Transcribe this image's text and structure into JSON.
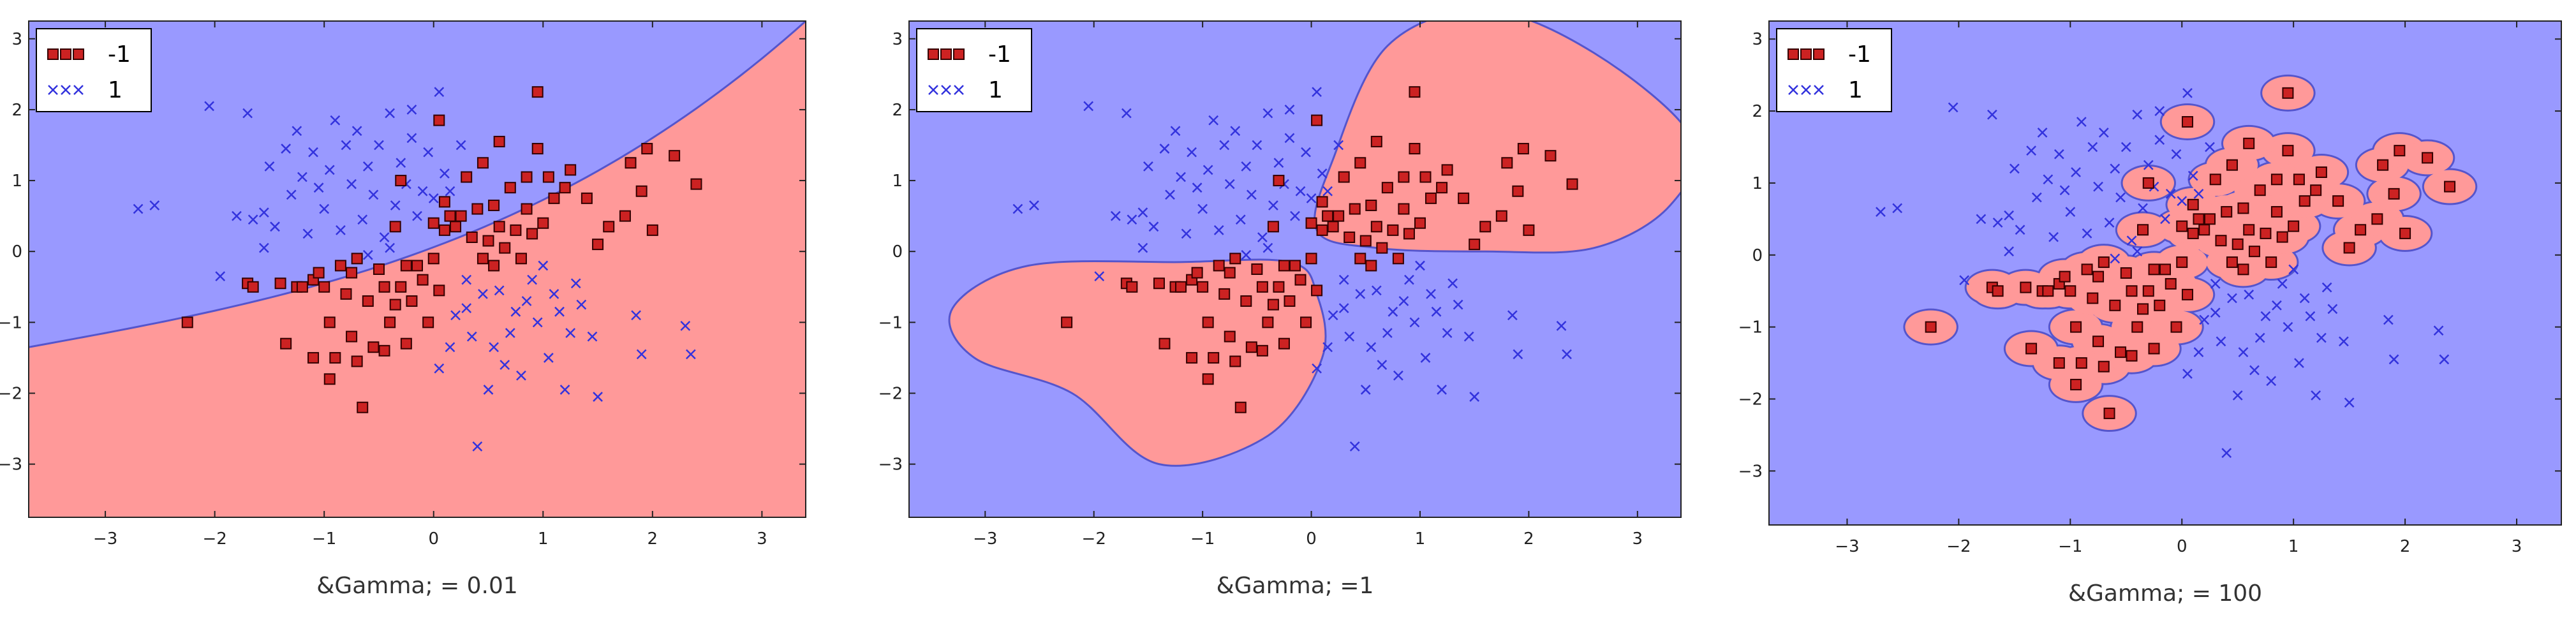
{
  "figure": {
    "panels": [
      {
        "caption": "&Gamma; = 0.01"
      },
      {
        "caption": "&Gamma; =1"
      },
      {
        "caption": "&Gamma; = 100"
      }
    ]
  },
  "chart_data": [
    {
      "type": "scatter",
      "title": "&Gamma; = 0.01",
      "xlim": [
        -3.7,
        3.4
      ],
      "ylim": [
        -3.75,
        3.25
      ],
      "xticks": [
        -3,
        -2,
        -1,
        0,
        1,
        2,
        3
      ],
      "yticks": [
        -3,
        -2,
        -1,
        0,
        1,
        2,
        3
      ],
      "legend": {
        "placement": "top-left",
        "entries": [
          "-1",
          "1"
        ]
      },
      "regions": {
        "class_-1": "#ff9999",
        "class_1": "#9999ff",
        "boundary": "#5555cc"
      },
      "decision_boundary": "smooth convex curve from (-3.7,-1.35) rising to (3.4,3.25); lower-right region is class -1",
      "series": [
        {
          "name": "-1",
          "marker": "square",
          "color": "#cc2222",
          "points": [
            [
              -2.25,
              -1.0
            ],
            [
              -1.7,
              -0.45
            ],
            [
              -1.65,
              -0.5
            ],
            [
              -1.4,
              -0.45
            ],
            [
              -1.35,
              -1.3
            ],
            [
              -1.25,
              -0.5
            ],
            [
              -1.2,
              -0.5
            ],
            [
              -1.1,
              -0.4
            ],
            [
              -1.1,
              -1.5
            ],
            [
              -1.05,
              -0.3
            ],
            [
              -1.0,
              -0.5
            ],
            [
              -0.95,
              -1.8
            ],
            [
              -0.95,
              -1.0
            ],
            [
              -0.9,
              -1.5
            ],
            [
              -0.85,
              -0.2
            ],
            [
              -0.8,
              -0.6
            ],
            [
              -0.75,
              -0.3
            ],
            [
              -0.75,
              -1.2
            ],
            [
              -0.7,
              -1.55
            ],
            [
              -0.7,
              -0.1
            ],
            [
              -0.65,
              -2.2
            ],
            [
              -0.6,
              -0.7
            ],
            [
              -0.55,
              -1.35
            ],
            [
              -0.5,
              -0.25
            ],
            [
              -0.45,
              -0.5
            ],
            [
              -0.45,
              -1.4
            ],
            [
              -0.4,
              -1.0
            ],
            [
              -0.35,
              -0.75
            ],
            [
              -0.3,
              -0.5
            ],
            [
              -0.25,
              -1.3
            ],
            [
              -0.2,
              -0.7
            ],
            [
              -0.1,
              -0.4
            ],
            [
              -0.05,
              -1.0
            ],
            [
              0.0,
              -0.1
            ],
            [
              0.05,
              -0.55
            ],
            [
              0.1,
              0.3
            ],
            [
              0.1,
              0.7
            ],
            [
              0.2,
              0.35
            ],
            [
              0.25,
              0.5
            ],
            [
              0.35,
              0.2
            ],
            [
              0.4,
              0.6
            ],
            [
              0.45,
              -0.1
            ],
            [
              0.5,
              0.15
            ],
            [
              0.55,
              -0.2
            ],
            [
              0.55,
              0.65
            ],
            [
              0.6,
              0.35
            ],
            [
              0.65,
              0.05
            ],
            [
              0.7,
              0.9
            ],
            [
              0.75,
              0.3
            ],
            [
              0.8,
              -0.1
            ],
            [
              0.85,
              0.6
            ],
            [
              0.9,
              0.25
            ],
            [
              0.95,
              1.45
            ],
            [
              1.0,
              0.4
            ],
            [
              1.05,
              1.05
            ],
            [
              1.1,
              0.75
            ],
            [
              1.2,
              0.9
            ],
            [
              1.25,
              1.15
            ],
            [
              1.4,
              0.75
            ],
            [
              1.5,
              0.1
            ],
            [
              1.6,
              0.35
            ],
            [
              1.75,
              0.5
            ],
            [
              1.8,
              1.25
            ],
            [
              1.9,
              0.85
            ],
            [
              1.95,
              1.45
            ],
            [
              2.0,
              0.3
            ],
            [
              2.2,
              1.35
            ],
            [
              2.4,
              0.95
            ],
            [
              -0.3,
              1.0
            ],
            [
              -0.35,
              0.35
            ],
            [
              0.0,
              0.4
            ],
            [
              0.3,
              1.05
            ],
            [
              0.05,
              1.85
            ],
            [
              0.95,
              2.25
            ],
            [
              -0.25,
              -0.2
            ],
            [
              -0.15,
              -0.2
            ],
            [
              0.15,
              0.5
            ],
            [
              0.45,
              1.25
            ],
            [
              0.6,
              1.55
            ],
            [
              0.85,
              1.05
            ]
          ]
        },
        {
          "name": "1",
          "marker": "x",
          "color": "#3333dd",
          "points": [
            [
              -2.7,
              0.6
            ],
            [
              -2.55,
              0.65
            ],
            [
              -2.05,
              2.05
            ],
            [
              -1.8,
              0.5
            ],
            [
              -1.7,
              1.95
            ],
            [
              -1.65,
              0.45
            ],
            [
              -1.55,
              0.55
            ],
            [
              -1.5,
              1.2
            ],
            [
              -1.45,
              0.35
            ],
            [
              -1.35,
              1.45
            ],
            [
              -1.3,
              0.8
            ],
            [
              -1.25,
              1.7
            ],
            [
              -1.2,
              1.05
            ],
            [
              -1.15,
              0.25
            ],
            [
              -1.1,
              1.4
            ],
            [
              -1.05,
              0.9
            ],
            [
              -1.0,
              0.6
            ],
            [
              -0.95,
              1.15
            ],
            [
              -0.9,
              1.85
            ],
            [
              -0.85,
              0.3
            ],
            [
              -0.8,
              1.5
            ],
            [
              -0.75,
              0.95
            ],
            [
              -0.7,
              1.7
            ],
            [
              -0.65,
              0.45
            ],
            [
              -0.6,
              1.2
            ],
            [
              -0.55,
              0.8
            ],
            [
              -0.5,
              1.5
            ],
            [
              -0.45,
              0.2
            ],
            [
              -0.4,
              1.95
            ],
            [
              -0.35,
              0.65
            ],
            [
              -0.3,
              1.25
            ],
            [
              -0.25,
              0.95
            ],
            [
              -0.2,
              1.6
            ],
            [
              -0.15,
              0.5
            ],
            [
              -0.1,
              0.85
            ],
            [
              -0.05,
              1.4
            ],
            [
              0.0,
              0.75
            ],
            [
              0.05,
              2.25
            ],
            [
              0.1,
              1.1
            ],
            [
              0.15,
              0.85
            ],
            [
              0.2,
              -0.9
            ],
            [
              0.3,
              -0.8
            ],
            [
              0.35,
              -1.2
            ],
            [
              0.4,
              -2.75
            ],
            [
              0.45,
              -0.6
            ],
            [
              0.55,
              -1.35
            ],
            [
              0.6,
              -0.55
            ],
            [
              0.65,
              -1.6
            ],
            [
              0.7,
              -1.15
            ],
            [
              0.75,
              -0.85
            ],
            [
              0.8,
              -1.75
            ],
            [
              0.85,
              -0.7
            ],
            [
              0.9,
              -0.4
            ],
            [
              0.95,
              -1.0
            ],
            [
              1.05,
              -1.5
            ],
            [
              1.1,
              -0.6
            ],
            [
              1.15,
              -0.85
            ],
            [
              1.25,
              -1.15
            ],
            [
              1.3,
              -0.45
            ],
            [
              1.35,
              -0.75
            ],
            [
              1.45,
              -1.2
            ],
            [
              1.5,
              -2.05
            ],
            [
              1.85,
              -0.9
            ],
            [
              1.9,
              -1.45
            ],
            [
              2.3,
              -1.05
            ],
            [
              2.35,
              -1.45
            ],
            [
              -0.4,
              0.05
            ],
            [
              -0.6,
              -0.05
            ],
            [
              0.3,
              -0.4
            ],
            [
              0.5,
              -1.95
            ],
            [
              1.0,
              -0.2
            ],
            [
              1.2,
              -1.95
            ],
            [
              0.05,
              -1.65
            ],
            [
              -1.95,
              -0.35
            ],
            [
              -1.55,
              0.05
            ],
            [
              0.25,
              1.5
            ],
            [
              -0.2,
              2.0
            ],
            [
              0.15,
              -1.35
            ]
          ]
        }
      ]
    },
    {
      "type": "scatter",
      "title": "&Gamma; =1",
      "xlim": [
        -3.7,
        3.4
      ],
      "ylim": [
        -3.75,
        3.25
      ],
      "xticks": [
        -3,
        -2,
        -1,
        0,
        1,
        2,
        3
      ],
      "yticks": [
        -3,
        -2,
        -1,
        0,
        1,
        2,
        3
      ],
      "legend": {
        "placement": "top-left",
        "entries": [
          "-1",
          "1"
        ]
      },
      "regions": {
        "class_-1": "#ff9999",
        "class_1": "#9999ff",
        "boundary": "#5555cc"
      },
      "decision_boundary": "two lobes: lower-left lobe around (-1.5,-1) and upper-right lobe around (1.5,1); remainder is class 1",
      "series": [
        {
          "name": "-1",
          "marker": "square",
          "color": "#cc2222",
          "points_ref": "same as panel 1"
        },
        {
          "name": "1",
          "marker": "x",
          "color": "#3333dd",
          "points_ref": "same as panel 1"
        }
      ]
    },
    {
      "type": "scatter",
      "title": "&Gamma; = 100",
      "xlim": [
        -3.7,
        3.4
      ],
      "ylim": [
        -3.75,
        3.25
      ],
      "xticks": [
        -3,
        -2,
        -1,
        0,
        1,
        2,
        3
      ],
      "yticks": [
        -3,
        -2,
        -1,
        0,
        1,
        2,
        3
      ],
      "legend": {
        "placement": "top-left",
        "entries": [
          "-1",
          "1"
        ]
      },
      "regions": {
        "class_-1": "#ff9999",
        "class_1": "#9999ff",
        "boundary": "#5555cc"
      },
      "decision_boundary": "tight islands around each class -1 point (overfit)",
      "series": [
        {
          "name": "-1",
          "marker": "square",
          "color": "#cc2222",
          "points_ref": "same as panel 1"
        },
        {
          "name": "1",
          "marker": "x",
          "color": "#3333dd",
          "points_ref": "same as panel 1"
        }
      ]
    }
  ]
}
